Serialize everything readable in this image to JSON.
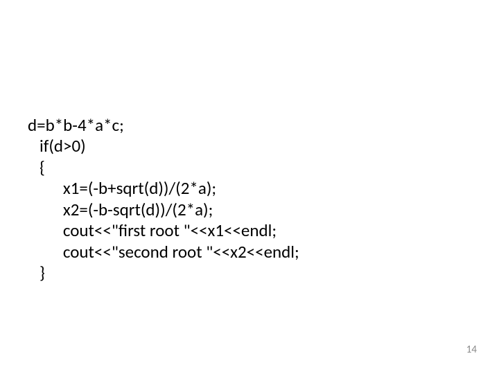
{
  "code": {
    "line1": "d=b*b-4*a*c;",
    "line2": "   if(d>0)",
    "line3": "   {",
    "line4": "         x1=(-b+sqrt(d))/(2*a);",
    "line5": "         x2=(-b-sqrt(d))/(2*a);",
    "line6": "         cout<<\"first root \"<<x1<<endl;",
    "line7": "         cout<<\"second root \"<<x2<<endl;",
    "line8": "   }"
  },
  "page_number": "14",
  "colors": {
    "background": "#ffffff",
    "text": "#000000",
    "page_number": "#8a8a8a"
  },
  "typography": {
    "code_fontsize": 25,
    "page_number_fontsize": 15,
    "font_family": "Calibri"
  }
}
